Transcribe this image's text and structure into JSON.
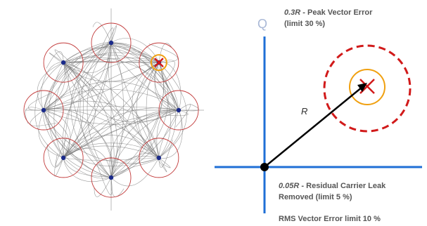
{
  "constellation": {
    "points": [
      {
        "i": 2,
        "j": 0,
        "error": false
      },
      {
        "i": 1,
        "j": 1,
        "error": false
      },
      {
        "i": 3,
        "j": 1,
        "error": true
      },
      {
        "i": 0,
        "j": 2,
        "error": false
      },
      {
        "i": 4,
        "j": 2,
        "error": false
      },
      {
        "i": 1,
        "j": 3,
        "error": false
      },
      {
        "i": 3,
        "j": 3,
        "error": false
      },
      {
        "i": 2,
        "j": 4,
        "error": false
      }
    ]
  },
  "vector_diagram": {
    "axis_label": "Q",
    "vector_label": "R",
    "peak_error": {
      "italic": "0.3R",
      "text": " - Peak Vector Error",
      "line2": "(limit 30 %)"
    },
    "carrier_leak": {
      "italic": "0.05R",
      "text": " - Residual Carrier Leak",
      "line2": "Removed (limit 5 %)"
    },
    "rms_error": "RMS Vector Error limit 10 %"
  },
  "colors": {
    "axis": "#1f6fd6",
    "dashed_circle": "#d11a1a",
    "orange_circle": "#f0a010",
    "error_mark": "#d11a1a",
    "vector": "#000000",
    "trajectory": "#7a7a7a",
    "symbol_circle": "#c23a3a",
    "symbol_dot": "#1a2a8a"
  }
}
